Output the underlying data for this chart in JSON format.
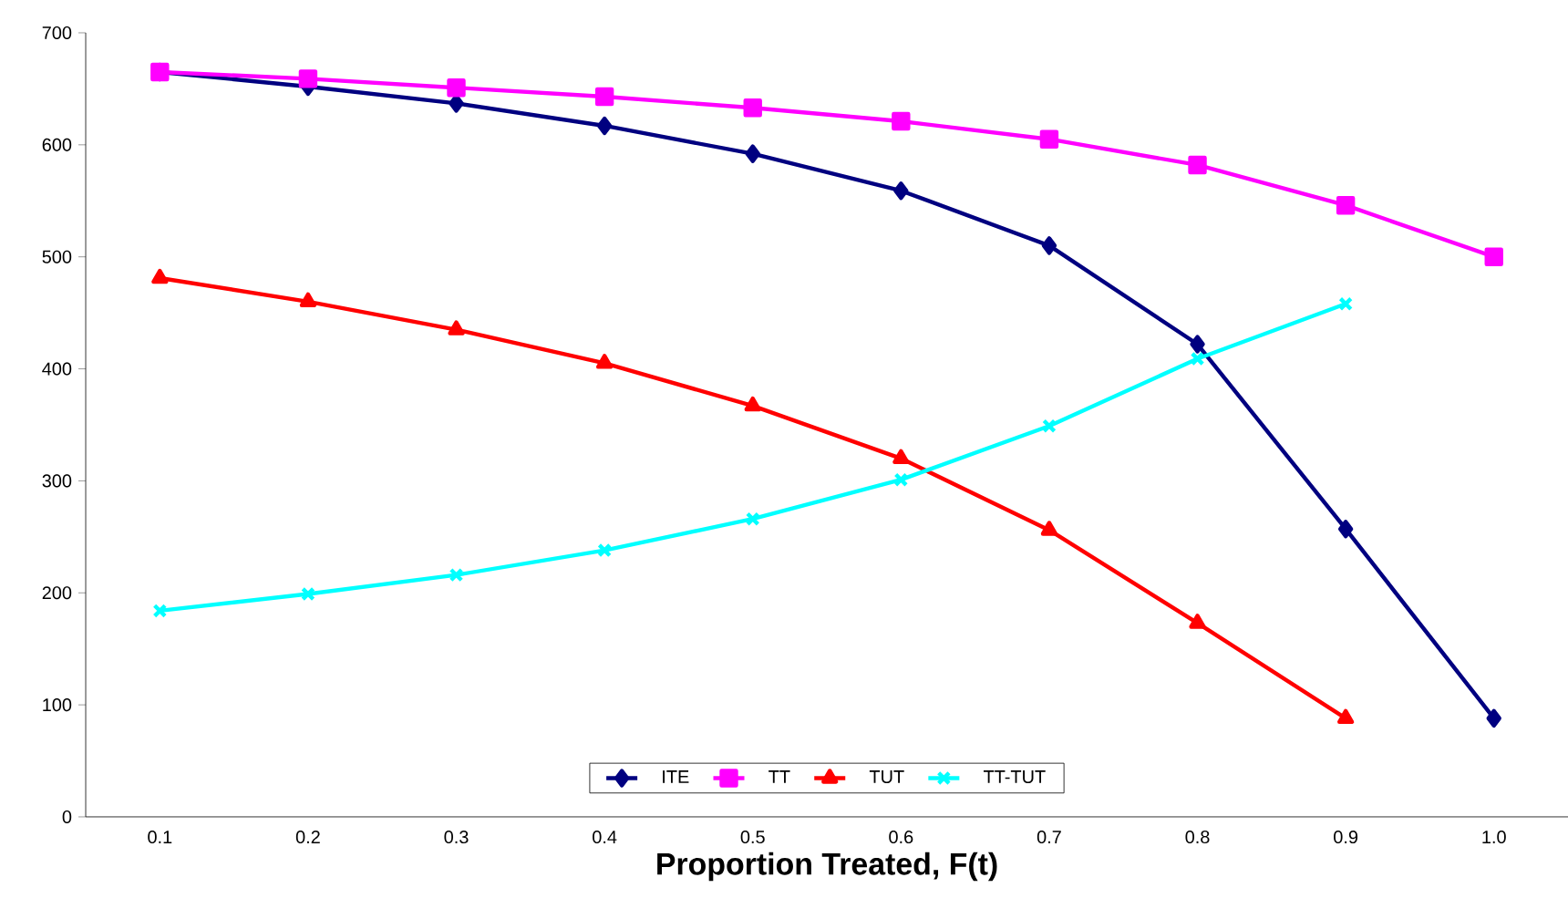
{
  "chart_data": {
    "type": "line",
    "xlabel": "Proportion Treated, F(t)",
    "categories": [
      "0.1",
      "0.2",
      "0.3",
      "0.4",
      "0.5",
      "0.6",
      "0.7",
      "0.8",
      "0.9",
      "1.0"
    ],
    "series": [
      {
        "name": "ITE",
        "color": "#000080",
        "marker": "diamond",
        "values": [
          665,
          652,
          637,
          617,
          592,
          559,
          510,
          422,
          257,
          88
        ]
      },
      {
        "name": "TT",
        "color": "#ff00ff",
        "marker": "square",
        "values": [
          665,
          659,
          651,
          643,
          633,
          621,
          605,
          582,
          546,
          500
        ]
      },
      {
        "name": "TUT",
        "color": "#ff0000",
        "marker": "triangle",
        "values": [
          481,
          460,
          435,
          405,
          367,
          320,
          256,
          173,
          88,
          null
        ]
      },
      {
        "name": "TT-TUT",
        "color": "#00ffff",
        "marker": "cross",
        "values": [
          184,
          199,
          216,
          238,
          266,
          301,
          349,
          409,
          458,
          null
        ]
      }
    ],
    "ylim": [
      0,
      700
    ],
    "yticks": [
      0,
      100,
      200,
      300,
      400,
      500,
      600,
      700
    ],
    "grid": false,
    "legend": "bottom",
    "line_style": "solid"
  }
}
